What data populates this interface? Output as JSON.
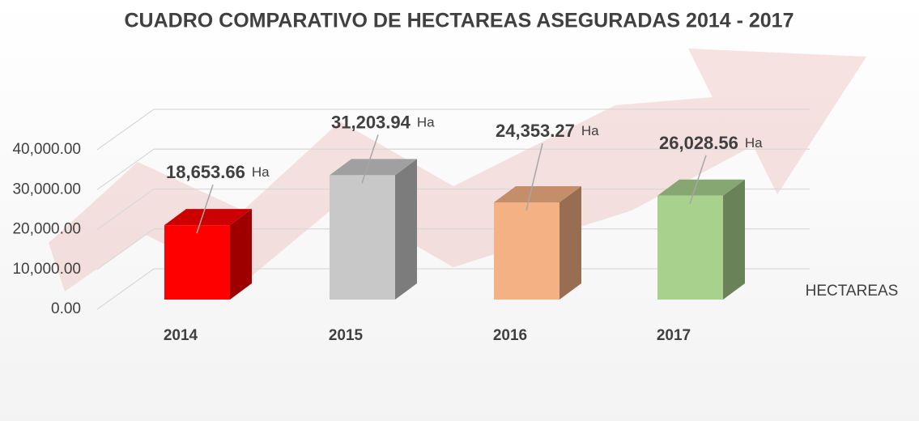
{
  "chart_data": {
    "type": "bar",
    "title": "CUADRO COMPARATIVO DE HECTAREAS ASEGURADAS 2014 - 2017",
    "categories": [
      "2014",
      "2015",
      "2016",
      "2017"
    ],
    "series": [
      {
        "name": "HECTAREAS",
        "colors": [
          "#ff0000",
          "#c8c8c8",
          "#f4b183",
          "#a9d18e"
        ],
        "values": [
          18653.66,
          31203.94,
          24353.27,
          26028.56
        ],
        "value_labels": [
          "18,653.66",
          "31,203.94",
          "24,353.27",
          "26,028.56"
        ]
      }
    ],
    "value_unit": "Ha",
    "ylim": [
      0,
      40000
    ],
    "yticks": [
      {
        "value": 0,
        "label": "0.00"
      },
      {
        "value": 10000,
        "label": "10,000.00"
      },
      {
        "value": 20000,
        "label": "20,000.00"
      },
      {
        "value": 30000,
        "label": "30,000.00"
      },
      {
        "value": 40000,
        "label": "40,000.00"
      }
    ],
    "grid": true,
    "legend": "right"
  }
}
